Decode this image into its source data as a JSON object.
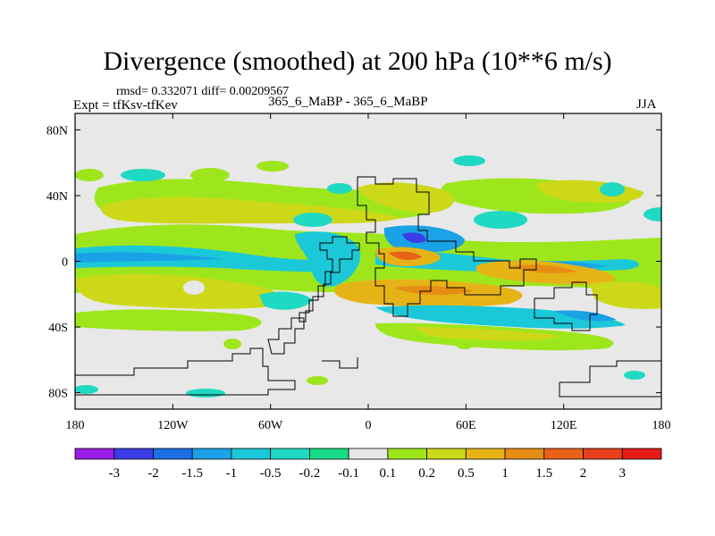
{
  "header": {
    "title": "Divergence (smoothed) at 200 hPa (10**6 m/s)",
    "stats": "rmsd= 0.332071 diff= 0.00209567",
    "expt": "Expt = tfKsv-tfKev",
    "runs": "365_6_MaBP - 365_6_MaBP",
    "season": "JJA"
  },
  "chart_data": {
    "type": "heatmap",
    "title": "Divergence (smoothed) at 200 hPa (10**6 m/s)",
    "xlabel": "",
    "ylabel": "",
    "xlim": [
      -180,
      180
    ],
    "ylim": [
      -90,
      90
    ],
    "x_ticks": [
      {
        "value": -180,
        "label": "180"
      },
      {
        "value": -120,
        "label": "120W"
      },
      {
        "value": -60,
        "label": "60W"
      },
      {
        "value": 0,
        "label": "0"
      },
      {
        "value": 60,
        "label": "60E"
      },
      {
        "value": 120,
        "label": "120E"
      },
      {
        "value": 180,
        "label": "180"
      }
    ],
    "y_ticks": [
      {
        "value": 80,
        "label": "80N"
      },
      {
        "value": 40,
        "label": "40N"
      },
      {
        "value": 0,
        "label": "0"
      },
      {
        "value": -40,
        "label": "40S"
      },
      {
        "value": -80,
        "label": "80S"
      }
    ],
    "colorbar": {
      "levels": [
        "-3",
        "-2",
        "-1.5",
        "-1",
        "-0.5",
        "-0.2",
        "-0.1",
        "0.1",
        "0.2",
        "0.5",
        "1",
        "1.5",
        "2",
        "3"
      ],
      "colors": [
        "#9a1ee6",
        "#3a3ee6",
        "#1b6ee6",
        "#1aa2e6",
        "#1bc8d8",
        "#1fd9c2",
        "#19dc86",
        "#e8e8e8",
        "#9ee61c",
        "#cdd818",
        "#e6b317",
        "#e68e14",
        "#e8621a",
        "#e8401c",
        "#e61c1c"
      ]
    },
    "fields": [
      {
        "lon": -165,
        "lat": 6,
        "value": -0.5
      },
      {
        "lon": -130,
        "lat": 6,
        "value": -0.5
      },
      {
        "lon": -95,
        "lat": 6,
        "value": -0.2
      },
      {
        "lon": 60,
        "lat": 7,
        "value": -0.5
      },
      {
        "lon": 130,
        "lat": 9,
        "value": -0.5
      },
      {
        "lon": 25,
        "lat": 15,
        "value": -1.5
      },
      {
        "lon": -10,
        "lat": 4,
        "value": -1
      },
      {
        "lon": -160,
        "lat": 20,
        "value": 0.5
      },
      {
        "lon": -130,
        "lat": 24,
        "value": 1
      },
      {
        "lon": -95,
        "lat": 30,
        "value": 0.2
      },
      {
        "lon": 30,
        "lat": 3,
        "value": 1.5
      },
      {
        "lon": 85,
        "lat": -4,
        "value": 1
      },
      {
        "lon": 60,
        "lat": -20,
        "value": 1
      },
      {
        "lon": -140,
        "lat": -20,
        "value": 0.5
      },
      {
        "lon": 10,
        "lat": -23,
        "value": 0.5
      },
      {
        "lon": 95,
        "lat": -38,
        "value": 0.5
      },
      {
        "lon": 160,
        "lat": -8,
        "value": 1
      },
      {
        "lon": -130,
        "lat": -38,
        "value": 0.2
      },
      {
        "lon": 55,
        "lat": 42,
        "value": 0.2
      },
      {
        "lon": -25,
        "lat": -35,
        "value": -0.2
      },
      {
        "lon": 85,
        "lat": -30,
        "value": -0.5
      }
    ]
  }
}
